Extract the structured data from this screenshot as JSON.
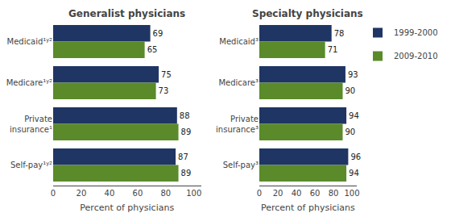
{
  "chart_data": [
    {
      "type": "bar",
      "orientation": "horizontal",
      "title": "Generalist physicians",
      "categories": [
        "Medicaid¹ʸ²",
        "Medicare¹ʸ²",
        "Private\ninsurance¹",
        "Self-pay¹ʸ²"
      ],
      "series": [
        {
          "name": "1999-2000",
          "color": "#1f3564",
          "values": [
            69,
            75,
            88,
            87
          ]
        },
        {
          "name": "2009-2010",
          "color": "#5a8a2a",
          "values": [
            65,
            73,
            89,
            89
          ]
        }
      ],
      "xlabel": "Percent of physicians",
      "xlim": [
        0,
        105
      ],
      "xticks": [
        0,
        20,
        40,
        60,
        80,
        100
      ],
      "data_labels": true,
      "grid": false
    },
    {
      "type": "bar",
      "orientation": "horizontal",
      "title": "Specialty physicians",
      "categories": [
        "Medicaid³",
        "Medicare³",
        "Private\ninsurance³",
        "Self-pay³"
      ],
      "series": [
        {
          "name": "1999-2000",
          "color": "#1f3564",
          "values": [
            78,
            93,
            94,
            96
          ]
        },
        {
          "name": "2009-2010",
          "color": "#5a8a2a",
          "values": [
            71,
            90,
            90,
            94
          ]
        }
      ],
      "xlabel": "Percent of physicians",
      "xlim": [
        0,
        105
      ],
      "xticks": [
        0,
        20,
        40,
        60,
        80,
        100
      ],
      "data_labels": true,
      "grid": false,
      "legend": "upper right"
    }
  ]
}
